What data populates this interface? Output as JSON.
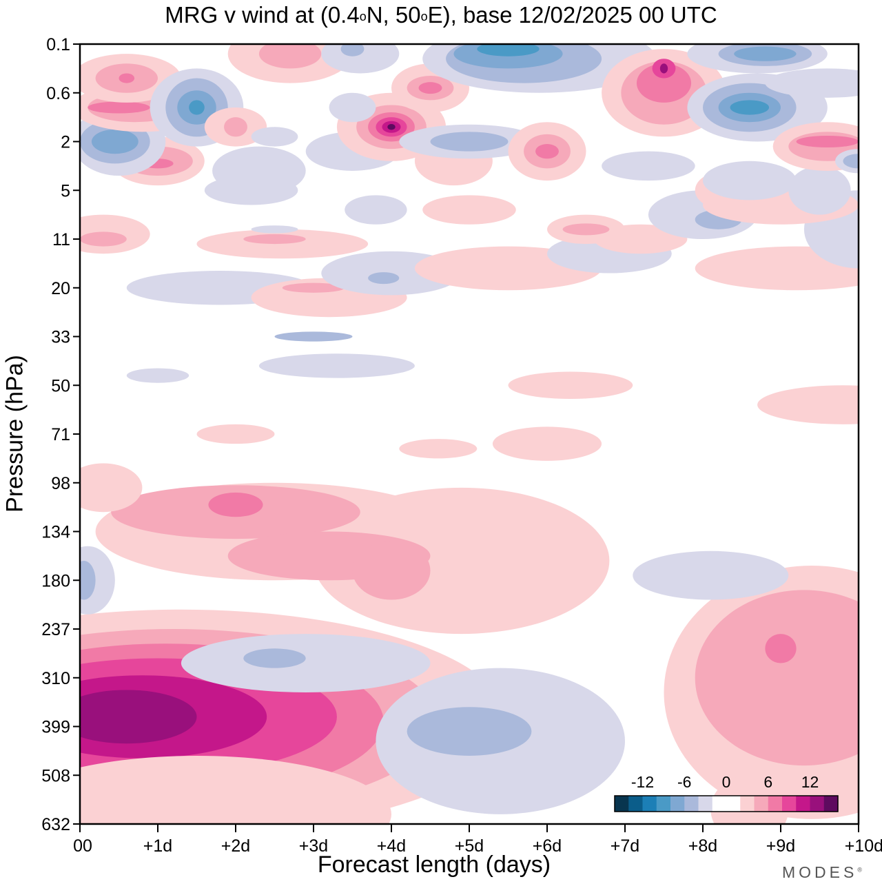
{
  "title": {
    "prefix": "MRG v wind at (0.4",
    "deg1": "o",
    "mid": "N, 50",
    "deg2": "o",
    "suffix": "E),  base 12/02/2025  00 UTC"
  },
  "brand": {
    "text": "MODES",
    "mark": "®"
  },
  "chart_data": {
    "type": "heatmap",
    "title": "MRG v wind at (0.4°N, 50°E),  base 12/02/2025  00 UTC",
    "xlabel": "Forecast length (days)",
    "ylabel": "Pressure (hPa)",
    "x_ticks": [
      "00",
      "+1d",
      "+2d",
      "+3d",
      "+4d",
      "+5d",
      "+6d",
      "+7d",
      "+8d",
      "+9d",
      "+10d"
    ],
    "xlim": [
      0,
      10
    ],
    "y_ticks": [
      "0.1",
      "0.6",
      "2",
      "5",
      "11",
      "20",
      "33",
      "50",
      "71",
      "98",
      "134",
      "180",
      "237",
      "310",
      "399",
      "508",
      "632"
    ],
    "y_scale": "model levels (pressure increasing downward)",
    "grid": false,
    "colorbar": {
      "placement": "bottom-right",
      "tick_labels": [
        "-12",
        "-6",
        "0",
        "6",
        "12"
      ],
      "colors": [
        "#08354f",
        "#0b5d8a",
        "#1c7fb6",
        "#4a9ac6",
        "#7fa8d2",
        "#aab9db",
        "#d8d8ea",
        "#ffffff",
        "#ffffff",
        "#fbd1d3",
        "#f6a9ba",
        "#f17aa6",
        "#e6469b",
        "#c4178a",
        "#99107c",
        "#5e0b5f"
      ]
    },
    "features": [
      {
        "x": 0.6,
        "y": "399",
        "value": 12
      },
      {
        "x": 2.2,
        "y": "399",
        "value": 9
      },
      {
        "x": 2.0,
        "y": "98",
        "value": 6
      },
      {
        "x": 4.0,
        "y": "134",
        "value": 4
      },
      {
        "x": 5.0,
        "y": "399",
        "value": -4
      },
      {
        "x": 4.0,
        "y": "2",
        "value": 14
      },
      {
        "x": 1.5,
        "y": "0.6",
        "value": -9
      },
      {
        "x": 7.5,
        "y": "0.6",
        "value": 10
      },
      {
        "x": 8.6,
        "y": "0.6",
        "value": -7
      },
      {
        "x": 9.0,
        "y": "237",
        "value": 7
      },
      {
        "x": 9.0,
        "y": "399",
        "value": 5
      },
      {
        "x": 8.0,
        "y": "134",
        "value": -2
      }
    ]
  }
}
